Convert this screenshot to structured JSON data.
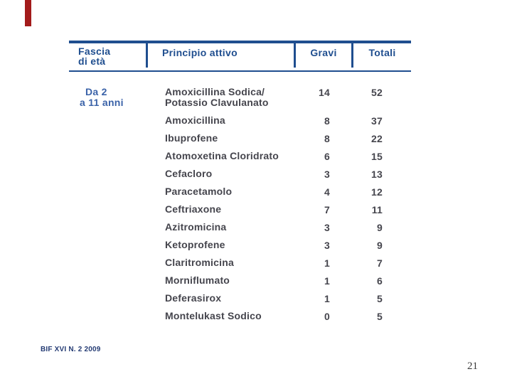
{
  "slide": {
    "page_number": "21",
    "citation": "BIF XVI N. 2 2009"
  },
  "colors": {
    "table_blue": "#1F4E8F",
    "age_blue": "#3A62A8",
    "body_text": "#45454D",
    "accent_red": "#A31B1B"
  },
  "table": {
    "header": {
      "col1_line1": "Fascia",
      "col1_line2": "di età",
      "col2": "Principio attivo",
      "col3": "Gravi",
      "col4": "Totali"
    },
    "age_group": {
      "line1": "Da 2",
      "line2": "a 11 anni"
    },
    "rows": [
      {
        "name": "Amoxicillina Sodica/",
        "name_line2": "Potassio Clavulanato",
        "gravi": "14",
        "totali": "52"
      },
      {
        "name": "Amoxicillina",
        "gravi": "8",
        "totali": "37"
      },
      {
        "name": "Ibuprofene",
        "gravi": "8",
        "totali": "22"
      },
      {
        "name": "Atomoxetina Cloridrato",
        "gravi": "6",
        "totali": "15"
      },
      {
        "name": "Cefacloro",
        "gravi": "3",
        "totali": "13"
      },
      {
        "name": "Paracetamolo",
        "gravi": "4",
        "totali": "12"
      },
      {
        "name": "Ceftriaxone",
        "gravi": "7",
        "totali": "11"
      },
      {
        "name": "Azitromicina",
        "gravi": "3",
        "totali": "9"
      },
      {
        "name": "Ketoprofene",
        "gravi": "3",
        "totali": "9"
      },
      {
        "name": "Claritromicina",
        "gravi": "1",
        "totali": "7"
      },
      {
        "name": "Morniflumato",
        "gravi": "1",
        "totali": "6"
      },
      {
        "name": "Deferasirox",
        "gravi": "1",
        "totali": "5"
      },
      {
        "name": "Montelukast Sodico",
        "gravi": "0",
        "totali": "5"
      }
    ]
  },
  "chart_data": {
    "type": "table",
    "columns": [
      "Fascia di età",
      "Principio attivo",
      "Gravi",
      "Totali"
    ],
    "rows": [
      [
        "Da 2 a 11 anni",
        "Amoxicillina Sodica/ Potassio Clavulanato",
        14,
        52
      ],
      [
        "",
        "Amoxicillina",
        8,
        37
      ],
      [
        "",
        "Ibuprofene",
        8,
        22
      ],
      [
        "",
        "Atomoxetina Cloridrato",
        6,
        15
      ],
      [
        "",
        "Cefacloro",
        3,
        13
      ],
      [
        "",
        "Paracetamolo",
        4,
        12
      ],
      [
        "",
        "Ceftriaxone",
        7,
        11
      ],
      [
        "",
        "Azitromicina",
        3,
        9
      ],
      [
        "",
        "Ketoprofene",
        3,
        9
      ],
      [
        "",
        "Claritromicina",
        1,
        7
      ],
      [
        "",
        "Morniflumato",
        1,
        6
      ],
      [
        "",
        "Deferasirox",
        1,
        5
      ],
      [
        "",
        "Montelukast Sodico",
        0,
        5
      ]
    ]
  }
}
